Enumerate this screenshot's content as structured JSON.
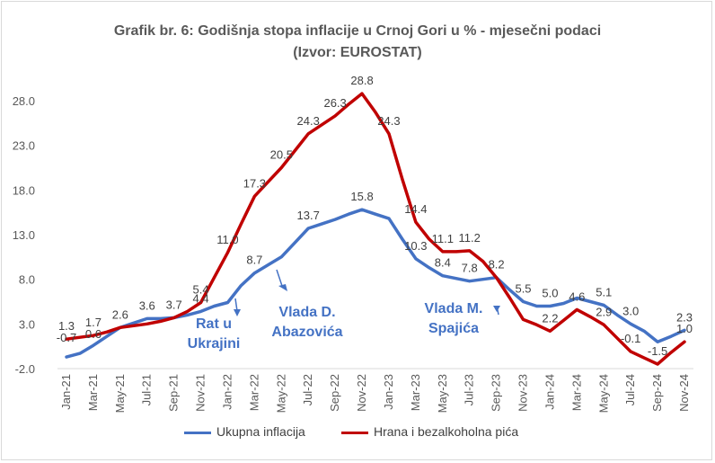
{
  "title": "Grafik br. 6: Godišnja stopa inflacije u Crnoj Gori u % - mjesečni podaci",
  "subtitle": "(Izvor: EUROSTAT)",
  "chart_data": {
    "type": "line",
    "x": [
      "Jan-21",
      "Feb-21",
      "Mar-21",
      "Apr-21",
      "May-21",
      "Jun-21",
      "Jul-21",
      "Aug-21",
      "Sep-21",
      "Oct-21",
      "Nov-21",
      "Dec-21",
      "Jan-22",
      "Feb-22",
      "Mar-22",
      "Apr-22",
      "May-22",
      "Jun-22",
      "Jul-22",
      "Aug-22",
      "Sep-22",
      "Oct-22",
      "Nov-22",
      "Dec-22",
      "Jan-23",
      "Feb-23",
      "Mar-23",
      "Apr-23",
      "May-23",
      "Jun-23",
      "Jul-23",
      "Aug-23",
      "Sep-23",
      "Oct-23",
      "Nov-23",
      "Dec-23",
      "Jan-24",
      "Feb-24",
      "Mar-24",
      "Apr-24",
      "May-24",
      "Jun-24",
      "Jul-24",
      "Aug-24",
      "Sep-24",
      "Oct-24",
      "Nov-24"
    ],
    "tick_labels": [
      "Jan-21",
      "Mar-21",
      "May-21",
      "Jul-21",
      "Sep-21",
      "Nov-21",
      "Jan-22",
      "Mar-22",
      "May-22",
      "Jul-22",
      "Sep-22",
      "Nov-22",
      "Jan-23",
      "Mar-23",
      "May-23",
      "Jul-23",
      "Sep-23",
      "Nov-23",
      "Jan-24",
      "Mar-24",
      "May-24",
      "Jul-24",
      "Sep-24",
      "Nov-24"
    ],
    "y_ticks": [
      "-2.0",
      "3.0",
      "8.0",
      "13.0",
      "18.0",
      "23.0",
      "28.0"
    ],
    "ylim": [
      -2,
      30
    ],
    "series": [
      {
        "name": "Ukupna inflacija",
        "color": "#4472c4",
        "values": [
          -0.7,
          -0.3,
          0.6,
          1.6,
          2.6,
          3.1,
          3.6,
          3.6,
          3.7,
          4.0,
          4.4,
          5.0,
          5.4,
          7.3,
          8.7,
          9.6,
          10.5,
          12.1,
          13.7,
          14.2,
          14.7,
          15.3,
          15.8,
          15.3,
          14.8,
          12.5,
          10.3,
          9.3,
          8.4,
          8.1,
          7.8,
          8.0,
          8.2,
          6.8,
          5.5,
          5.0,
          5.0,
          5.3,
          5.9,
          5.5,
          5.1,
          4.0,
          3.0,
          2.2,
          1.0,
          1.6,
          2.3
        ],
        "labels": [
          [
            0,
            "-0.7"
          ],
          [
            2,
            "0.6"
          ],
          [
            6,
            "3.6"
          ],
          [
            10,
            "4.4"
          ],
          [
            14,
            "8.7"
          ],
          [
            18,
            "13.7"
          ],
          [
            22,
            "15.8"
          ],
          [
            26,
            "10.3"
          ],
          [
            28,
            "8.4"
          ],
          [
            30,
            "7.8"
          ],
          [
            34,
            "5.5"
          ],
          [
            36,
            "5.0"
          ],
          [
            40,
            "5.1"
          ],
          [
            42,
            "3.0"
          ],
          [
            46,
            "2.3"
          ]
        ]
      },
      {
        "name": "Hrana i bezalkoholna pića",
        "color": "#c00000",
        "values": [
          1.3,
          1.5,
          1.7,
          2.1,
          2.6,
          2.8,
          3.0,
          3.3,
          3.7,
          4.4,
          5.4,
          8.2,
          11.0,
          14.2,
          17.3,
          18.9,
          20.5,
          22.4,
          24.3,
          25.3,
          26.3,
          27.6,
          28.8,
          26.7,
          24.3,
          19.2,
          14.4,
          12.5,
          11.1,
          11.1,
          11.2,
          10.0,
          8.2,
          5.9,
          3.5,
          2.9,
          2.2,
          3.4,
          4.6,
          3.8,
          2.9,
          1.4,
          -0.1,
          -0.8,
          -1.5,
          -0.2,
          1.0
        ],
        "labels": [
          [
            0,
            "1.3"
          ],
          [
            2,
            "1.7"
          ],
          [
            4,
            "2.6"
          ],
          [
            8,
            "3.7"
          ],
          [
            10,
            "5.4"
          ],
          [
            12,
            "11.0"
          ],
          [
            14,
            "17.3"
          ],
          [
            16,
            "20.5"
          ],
          [
            18,
            "24.3"
          ],
          [
            20,
            "26.3"
          ],
          [
            22,
            "28.8"
          ],
          [
            24,
            "24.3"
          ],
          [
            26,
            "14.4"
          ],
          [
            28,
            "11.1"
          ],
          [
            30,
            "11.2"
          ],
          [
            32,
            "8.2"
          ],
          [
            36,
            "2.2"
          ],
          [
            38,
            "4.6"
          ],
          [
            40,
            "2.9"
          ],
          [
            42,
            "-0.1"
          ],
          [
            44,
            "-1.5"
          ],
          [
            46,
            "1.0"
          ]
        ]
      }
    ],
    "annotations": [
      {
        "lines": [
          "Rat u",
          "Ukrajini"
        ],
        "index": 12
      },
      {
        "lines": [
          "Vlada D.",
          "Abazovića"
        ],
        "index": 16
      },
      {
        "lines": [
          "Vlada M.",
          "Spajića"
        ],
        "index": 32
      }
    ],
    "grid": false,
    "legend_position": "bottom"
  }
}
